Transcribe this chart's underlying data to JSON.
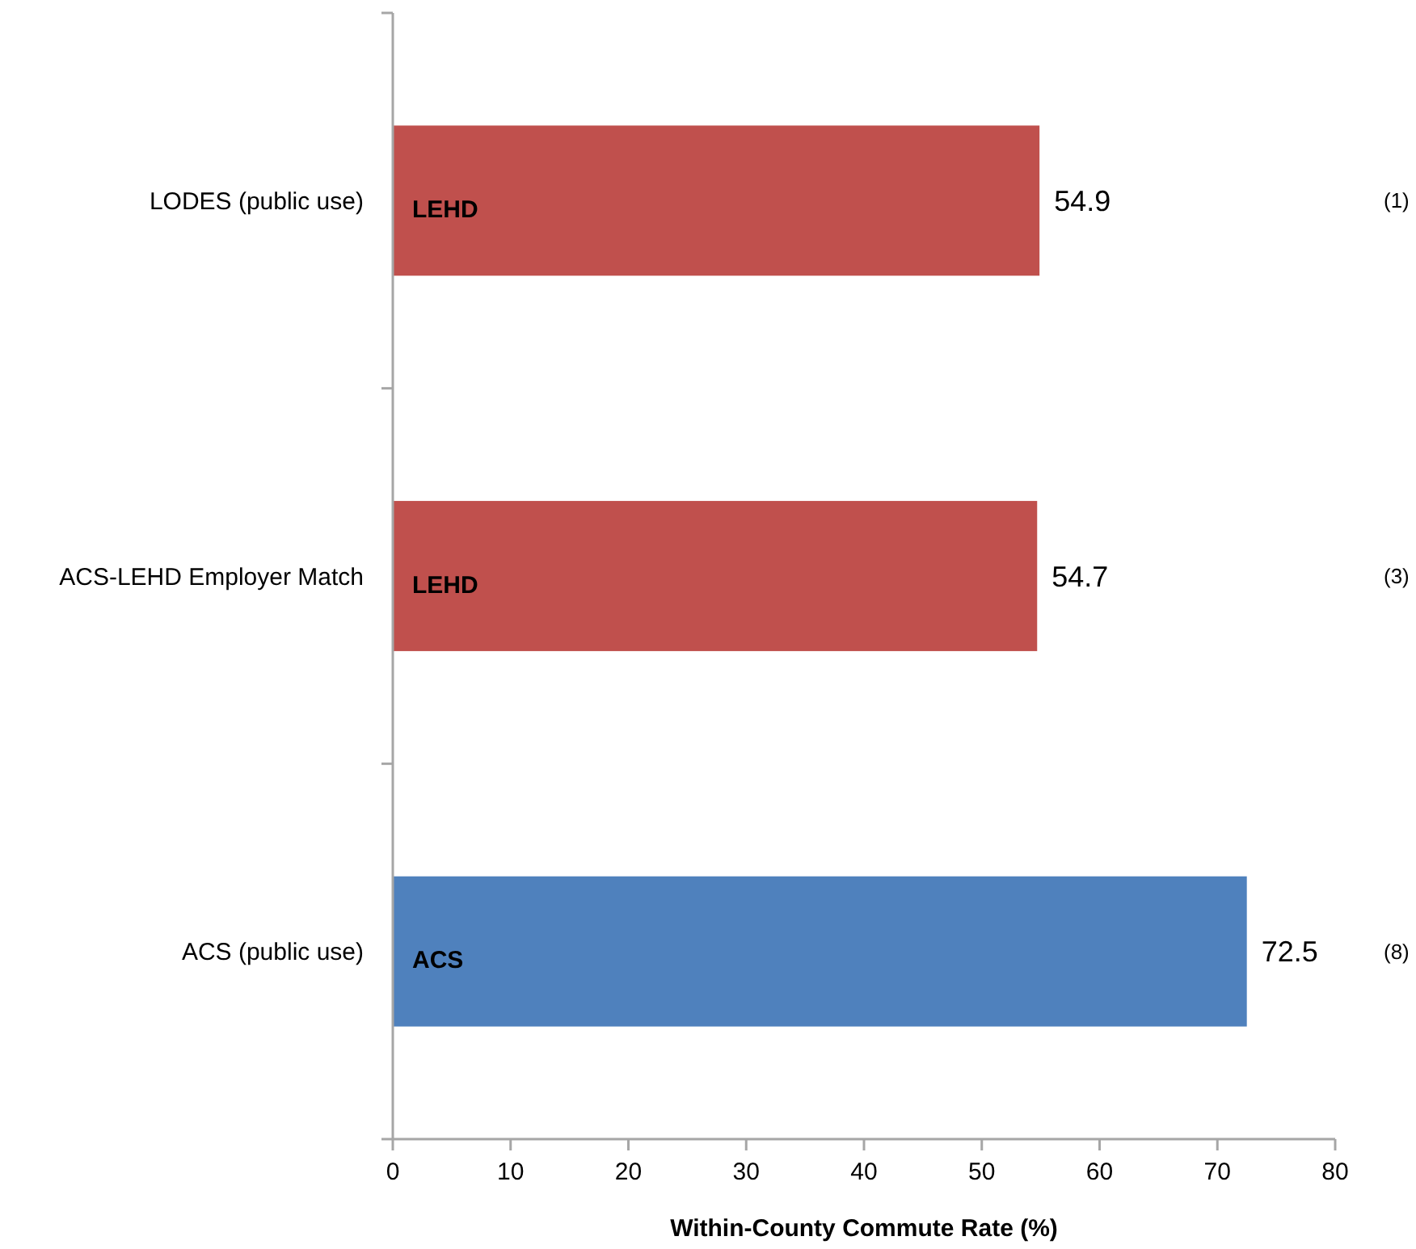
{
  "chart_data": {
    "type": "bar",
    "orientation": "horizontal",
    "xlabel": "Within-County Commute Rate (%)",
    "categories": [
      "LODES (public use)",
      "ACS-LEHD Employer Match",
      "ACS (public use)"
    ],
    "values": [
      54.9,
      54.7,
      72.5
    ],
    "colors": [
      "#c0504d",
      "#c0504d",
      "#4f81bd"
    ],
    "xlim": [
      0,
      80
    ],
    "xticks": [
      0,
      10,
      20,
      30,
      40,
      50,
      60,
      70,
      80
    ],
    "data_labels": true,
    "annotations": [
      "LEHD",
      "LEHD",
      "ACS",
      "(1)",
      "(3)",
      "(8)"
    ]
  }
}
